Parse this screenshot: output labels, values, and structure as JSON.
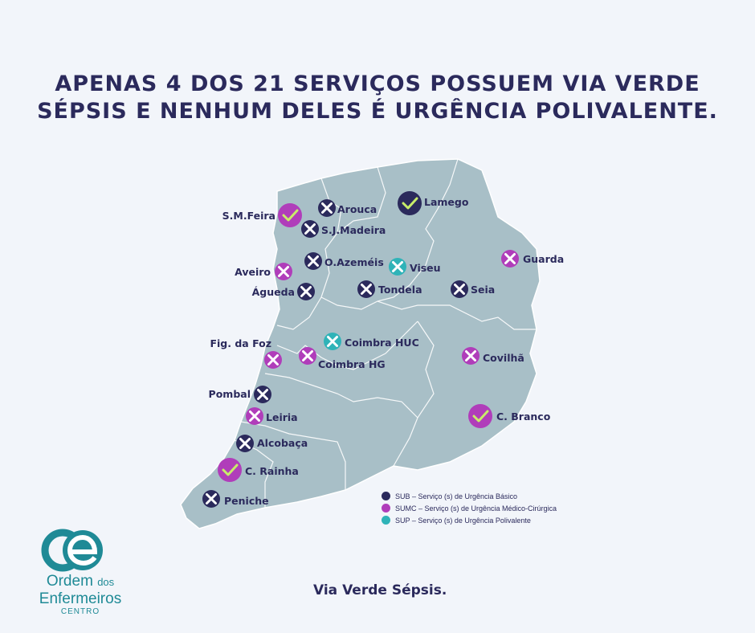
{
  "headline": {
    "line1": "APENAS 4 DOS 21 SERVIÇOS POSSUEM VIA VERDE",
    "line2": "SÉPSIS E NENHUM DELES É URGÊNCIA POLIVALENTE."
  },
  "colors": {
    "sub": "#2b2a5c",
    "sumc": "#b03dba",
    "sup": "#2fb3b8",
    "check": "#c8ec6a",
    "map_fill": "#a8bfc7"
  },
  "hospitals": [
    {
      "name": "Arouca",
      "type": "sub",
      "status": "x"
    },
    {
      "name": "Lamego",
      "type": "sub",
      "status": "check"
    },
    {
      "name": "S.M.Feira",
      "type": "sumc",
      "status": "check"
    },
    {
      "name": "S.J.Madeira",
      "type": "sub",
      "status": "x"
    },
    {
      "name": "O.Azeméis",
      "type": "sub",
      "status": "x"
    },
    {
      "name": "Viseu",
      "type": "sup",
      "status": "x"
    },
    {
      "name": "Guarda",
      "type": "sumc",
      "status": "x"
    },
    {
      "name": "Aveiro",
      "type": "sumc",
      "status": "x"
    },
    {
      "name": "Águeda",
      "type": "sub",
      "status": "x"
    },
    {
      "name": "Tondela",
      "type": "sub",
      "status": "x"
    },
    {
      "name": "Seia",
      "type": "sub",
      "status": "x"
    },
    {
      "name": "Fig. da Foz",
      "type": "sumc",
      "status": "x"
    },
    {
      "name": "Coimbra HUC",
      "type": "sup",
      "status": "x"
    },
    {
      "name": "Coimbra HG",
      "type": "sumc",
      "status": "x"
    },
    {
      "name": "Covilhã",
      "type": "sumc",
      "status": "x"
    },
    {
      "name": "Pombal",
      "type": "sub",
      "status": "x"
    },
    {
      "name": "Leiria",
      "type": "sumc",
      "status": "x"
    },
    {
      "name": "C. Branco",
      "type": "sumc",
      "status": "check"
    },
    {
      "name": "Alcobaça",
      "type": "sub",
      "status": "x"
    },
    {
      "name": "C. Rainha",
      "type": "sumc",
      "status": "check"
    },
    {
      "name": "Peniche",
      "type": "sub",
      "status": "x"
    }
  ],
  "legend": [
    {
      "label": "SUB – Serviço (s) de Urgência Básico",
      "type": "sub"
    },
    {
      "label": "SUMC – Serviço (s) de Urgência Médico-Cirúrgica",
      "type": "sumc"
    },
    {
      "label": "SUP – Serviço (s) de Urgência Polivalente",
      "type": "sup"
    }
  ],
  "footer": "Via Verde Sépsis.",
  "logo": {
    "line1a": "Ordem",
    "line1b": "dos",
    "line2": "Enfermeiros",
    "line3": "CENTRO"
  }
}
